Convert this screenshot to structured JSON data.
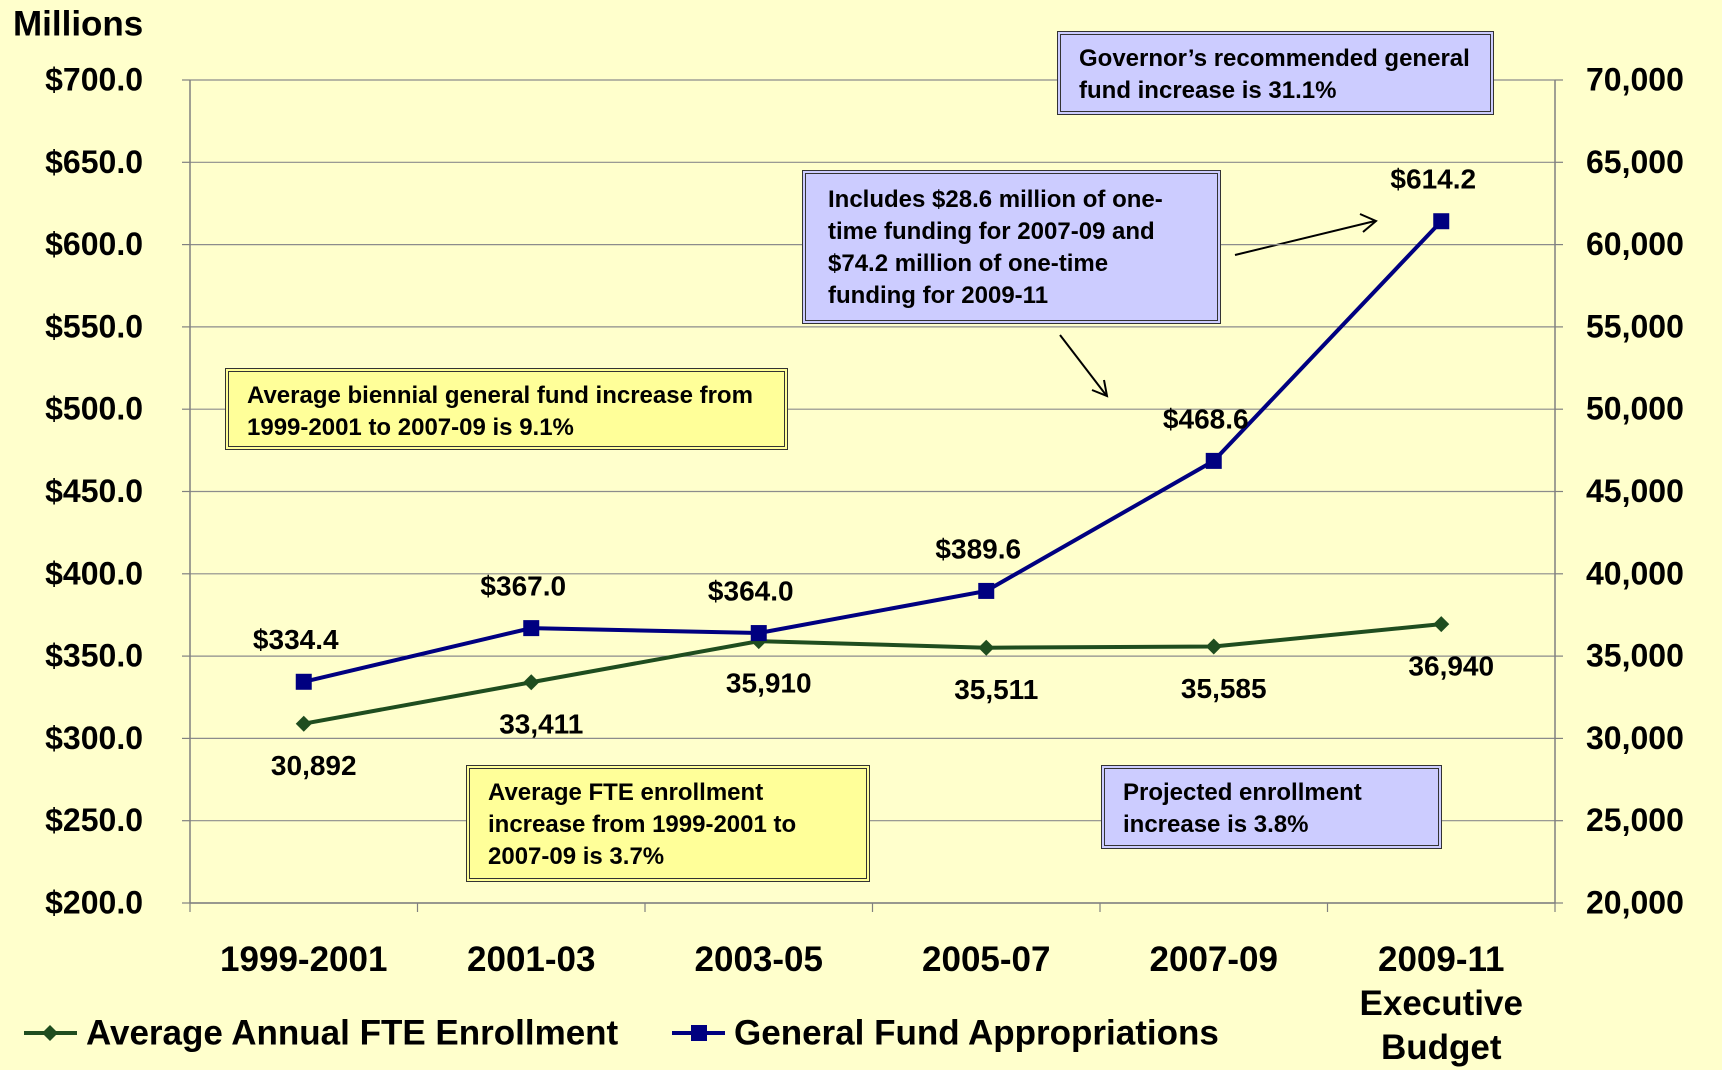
{
  "chart_data": {
    "type": "line",
    "y_axis_label": "Millions",
    "categories": [
      "1999-2001",
      "2001-03",
      "2003-05",
      "2005-07",
      "2007-09",
      "2009-11 Executive Budget"
    ],
    "series": [
      {
        "name": "Average Annual FTE Enrollment",
        "color": "#1f4d1f",
        "axis": "y2",
        "values": [
          30892,
          33411,
          35910,
          35511,
          35585,
          36940
        ],
        "value_labels": [
          "30,892",
          "33,411",
          "35,910",
          "35,511",
          "35,585",
          "36,940"
        ]
      },
      {
        "name": "General Fund Appropriations",
        "color": "#000080",
        "values": [
          334.4,
          367.0,
          364.0,
          389.6,
          468.6,
          614.2
        ],
        "value_labels": [
          "$334.4",
          "$367.0",
          "$364.0",
          "$389.6",
          "$468.6",
          "$614.2"
        ]
      }
    ],
    "ylim": [
      200,
      700
    ],
    "yticks": [
      {
        "value": 200,
        "label": "$200.0"
      },
      {
        "value": 250,
        "label": "$250.0"
      },
      {
        "value": 300,
        "label": "$300.0"
      },
      {
        "value": 350,
        "label": "$350.0"
      },
      {
        "value": 400,
        "label": "$400.0"
      },
      {
        "value": 450,
        "label": "$450.0"
      },
      {
        "value": 500,
        "label": "$500.0"
      },
      {
        "value": 550,
        "label": "$550.0"
      },
      {
        "value": 600,
        "label": "$600.0"
      },
      {
        "value": 650,
        "label": "$650.0"
      },
      {
        "value": 700,
        "label": "$700.0"
      }
    ],
    "y2lim": [
      20000,
      70000
    ],
    "y2ticks": [
      {
        "value": 20000,
        "label": "20,000"
      },
      {
        "value": 25000,
        "label": "25,000"
      },
      {
        "value": 30000,
        "label": "30,000"
      },
      {
        "value": 35000,
        "label": "35,000"
      },
      {
        "value": 40000,
        "label": "40,000"
      },
      {
        "value": 45000,
        "label": "45,000"
      },
      {
        "value": 50000,
        "label": "50,000"
      },
      {
        "value": 55000,
        "label": "55,000"
      },
      {
        "value": 60000,
        "label": "60,000"
      },
      {
        "value": 65000,
        "label": "65,000"
      },
      {
        "value": 70000,
        "label": "70,000"
      }
    ],
    "grid": true,
    "legend": "bottom-left",
    "annotations": [
      {
        "text": "Governor’s recommended general fund increase is 31.1%"
      },
      {
        "text": "Includes $28.6 million of one-time funding for 2007-09 and $74.2  million of one-time funding for 2009-11"
      },
      {
        "text": "Average biennial general fund increase from 1999-2001 to 2007-09 is 9.1%"
      },
      {
        "text": "Average FTE enrollment increase from 1999-2001 to 2007-09 is 3.7%"
      },
      {
        "text": "Projected enrollment increase is 3.8%"
      }
    ]
  }
}
